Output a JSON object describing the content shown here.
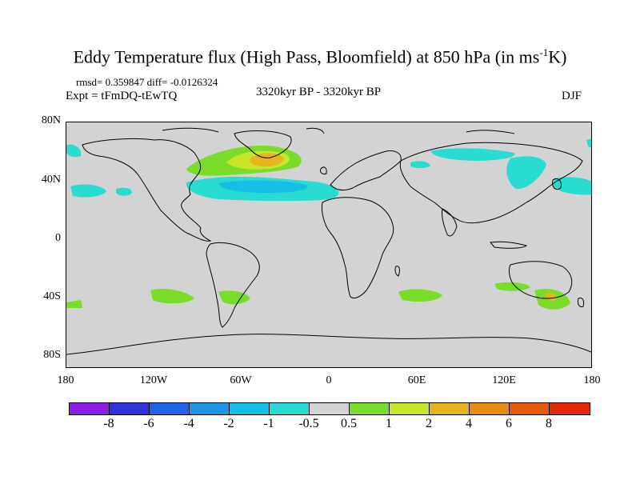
{
  "title_main": "Eddy Temperature flux (High Pass, Bloomfield) at 850 hPa (in ms",
  "title_sup": "-1",
  "title_end": "K)",
  "rmsd_text": "rmsd= 0.359847  diff= -0.0126324",
  "expt_text": "Expt = tFmDQ-tEwTQ",
  "period_text": "3320kyr BP - 3320kyr BP",
  "season_text": "DJF",
  "lat_labels": [
    "80N",
    "40N",
    "0",
    "40S",
    "80S"
  ],
  "lon_labels": [
    "180",
    "120W",
    "60W",
    "0",
    "60E",
    "120E",
    "180"
  ],
  "colorbar": {
    "colors": [
      "#8c1ee6",
      "#3232dc",
      "#1e64e6",
      "#1e96e6",
      "#14bee6",
      "#28dcd2",
      "#d3d3d3",
      "#78dc28",
      "#c8e628",
      "#e6b41e",
      "#e68c14",
      "#e65a0a",
      "#e6280a"
    ],
    "labels": [
      "-8",
      "-6",
      "-4",
      "-2",
      "-1",
      "-0.5",
      "0.5",
      "1",
      "2",
      "4",
      "6",
      "8"
    ]
  }
}
